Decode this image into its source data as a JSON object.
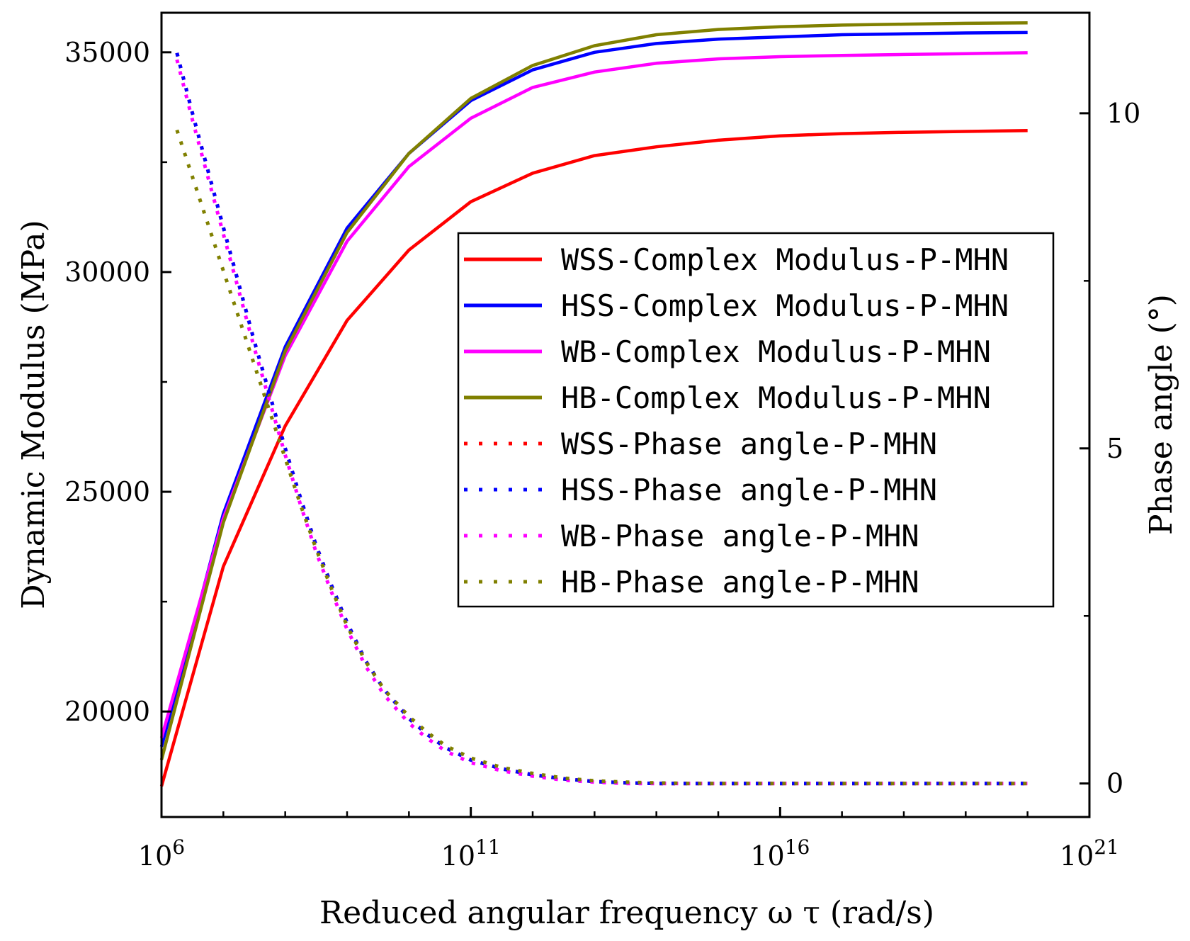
{
  "chart_data": {
    "type": "line",
    "title": "",
    "xlabel": "Reduced angular frequency ω τ (rad/s)",
    "ylabel": "Dynamic Modulus (MPa)",
    "y2label": "Phase angle (°)",
    "xscale": "log",
    "xlim_exp": [
      6,
      21
    ],
    "ylim": [
      17600,
      35900
    ],
    "y2lim": [
      -0.5,
      11.5
    ],
    "x_ticks": [
      {
        "base": "10",
        "exp": "6",
        "value_exp": 6
      },
      {
        "base": "10",
        "exp": "11",
        "value_exp": 11
      },
      {
        "base": "10",
        "exp": "16",
        "value_exp": 16
      },
      {
        "base": "10",
        "exp": "21",
        "value_exp": 21
      }
    ],
    "y_ticks": [
      "20000",
      "25000",
      "30000",
      "35000"
    ],
    "y_tick_values": [
      20000,
      25000,
      30000,
      35000
    ],
    "y2_ticks": [
      "0",
      "5",
      "10"
    ],
    "y2_tick_values": [
      0,
      5,
      10
    ],
    "legend_position": "center-right",
    "x_exp_modulus": [
      6,
      7,
      8,
      9,
      10,
      11,
      12,
      13,
      14,
      15,
      16,
      17,
      18,
      19,
      20
    ],
    "x_exp_phase": [
      6.25,
      6.5,
      6.75,
      7,
      7.25,
      7.5,
      7.75,
      8,
      8.25,
      8.5,
      8.75,
      9,
      9.3,
      9.6,
      10,
      10.3,
      10.6,
      11,
      11.5,
      12,
      12.5,
      13,
      13.5,
      14,
      14.5,
      15,
      15.5,
      16,
      16.5,
      17,
      17.5,
      18,
      18.5,
      19,
      19.5,
      20
    ],
    "series": [
      {
        "name": "WSS-Complex Modulus-P-MHN",
        "kind": "modulus",
        "color": "#ff0000",
        "style": "solid",
        "values": [
          18300,
          23300,
          26500,
          28900,
          30500,
          31600,
          32250,
          32650,
          32850,
          33000,
          33100,
          33150,
          33180,
          33200,
          33220
        ]
      },
      {
        "name": "HSS-Complex Modulus-P-MHN",
        "kind": "modulus",
        "color": "#0000ff",
        "style": "solid",
        "values": [
          19200,
          24500,
          28300,
          31000,
          32700,
          33900,
          34600,
          35000,
          35200,
          35300,
          35350,
          35400,
          35420,
          35440,
          35450
        ]
      },
      {
        "name": "WB-Complex Modulus-P-MHN",
        "kind": "modulus",
        "color": "#ff00ff",
        "style": "solid",
        "values": [
          19400,
          24400,
          28100,
          30700,
          32400,
          33500,
          34200,
          34550,
          34750,
          34850,
          34900,
          34930,
          34950,
          34970,
          34990
        ]
      },
      {
        "name": "HB-Complex Modulus-P-MHN",
        "kind": "modulus",
        "color": "#808000",
        "style": "solid",
        "values": [
          18900,
          24300,
          28200,
          30900,
          32700,
          33950,
          34700,
          35150,
          35400,
          35520,
          35580,
          35620,
          35640,
          35660,
          35670
        ]
      },
      {
        "name": "WSS-Phase angle-P-MHN",
        "kind": "phase",
        "color": "#ff0000",
        "style": "dotted",
        "values": [
          10.9,
          10.0,
          9.15,
          8.3,
          7.45,
          6.6,
          5.8,
          5.0,
          4.25,
          3.55,
          2.95,
          2.4,
          1.83,
          1.4,
          0.97,
          0.73,
          0.53,
          0.35,
          0.22,
          0.13,
          0.07,
          0.03,
          0.01,
          0.0,
          0.0,
          0.0,
          0.0,
          0.0,
          0.0,
          0.0,
          0.0,
          0.0,
          0.0,
          0.0,
          0.0,
          0.0
        ]
      },
      {
        "name": "HSS-Phase angle-P-MHN",
        "kind": "phase",
        "color": "#0000ff",
        "style": "dotted",
        "values": [
          10.9,
          10.0,
          9.15,
          8.3,
          7.45,
          6.6,
          5.8,
          5.0,
          4.25,
          3.55,
          2.95,
          2.4,
          1.83,
          1.4,
          0.97,
          0.73,
          0.53,
          0.35,
          0.22,
          0.13,
          0.07,
          0.03,
          0.01,
          0.0,
          0.0,
          0.0,
          0.0,
          0.0,
          0.0,
          0.0,
          0.0,
          0.0,
          0.0,
          0.0,
          0.0,
          0.0
        ]
      },
      {
        "name": "WB-Phase angle-P-MHN",
        "kind": "phase",
        "color": "#ff00ff",
        "style": "dotted",
        "values": [
          10.8,
          9.9,
          9.05,
          8.2,
          7.35,
          6.5,
          5.7,
          4.9,
          4.15,
          3.45,
          2.85,
          2.3,
          1.75,
          1.32,
          0.9,
          0.67,
          0.48,
          0.31,
          0.19,
          0.11,
          0.05,
          0.02,
          0.0,
          0.0,
          0.0,
          0.0,
          0.0,
          0.0,
          0.0,
          0.0,
          0.0,
          0.0,
          0.0,
          0.0,
          0.0,
          0.0
        ]
      },
      {
        "name": "HB-Phase angle-P-MHN",
        "kind": "phase",
        "color": "#808000",
        "style": "dotted",
        "values": [
          9.75,
          9.05,
          8.35,
          7.65,
          6.95,
          6.25,
          5.55,
          4.85,
          4.15,
          3.5,
          2.9,
          2.35,
          1.82,
          1.4,
          1.0,
          0.76,
          0.56,
          0.38,
          0.24,
          0.15,
          0.08,
          0.04,
          0.02,
          0.01,
          0.0,
          0.0,
          0.0,
          0.0,
          0.0,
          0.0,
          0.0,
          0.0,
          0.0,
          0.0,
          0.0,
          0.0
        ]
      }
    ]
  }
}
